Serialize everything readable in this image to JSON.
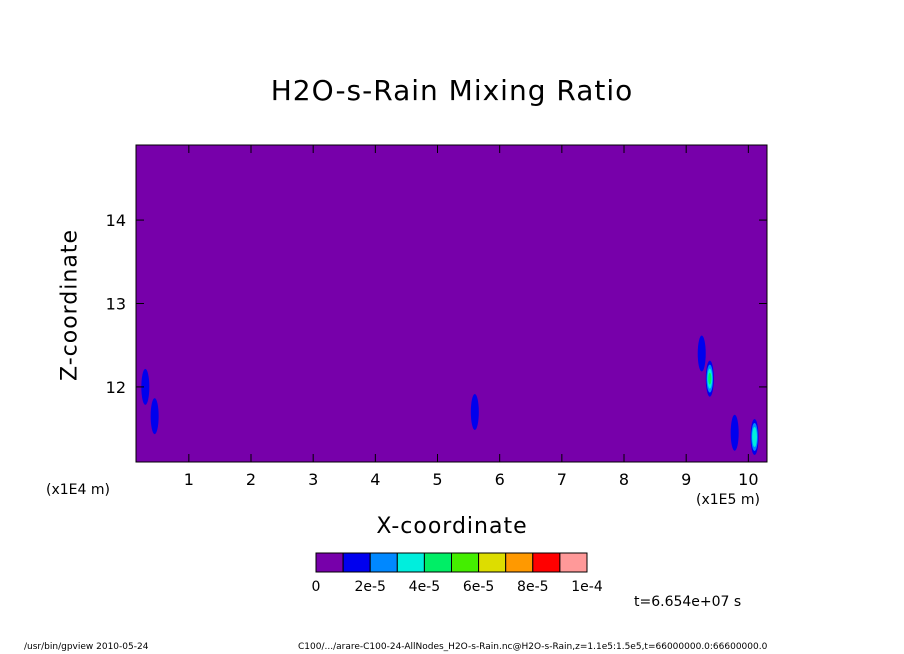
{
  "chart_data": {
    "type": "heatmap",
    "title": "H2O-s-Rain Mixing Ratio",
    "xlabel": "X-coordinate",
    "ylabel": "Z-coordinate",
    "x_unit_label": "(x1E5 m)",
    "z_unit_label": "(x1E4 m)",
    "xlim": [
      0.15,
      10.3
    ],
    "ylim": [
      11.1,
      14.9
    ],
    "x_ticks": [
      1,
      2,
      3,
      4,
      5,
      6,
      7,
      8,
      9,
      10
    ],
    "y_ticks": [
      12,
      13,
      14
    ],
    "background_value": 0,
    "colorbar": {
      "colors": [
        "#7700aa",
        "#0000ee",
        "#0088ff",
        "#00eedd",
        "#00ee66",
        "#44ee00",
        "#dddd00",
        "#ff9900",
        "#ff0000",
        "#ff9999"
      ],
      "labels": [
        "0",
        "2e-5",
        "4e-5",
        "6e-5",
        "8e-5",
        "1e-4"
      ]
    },
    "features": [
      {
        "x": 0.3,
        "z": 12.0,
        "level": 1
      },
      {
        "x": 0.45,
        "z": 11.65,
        "level": 1
      },
      {
        "x": 5.6,
        "z": 11.7,
        "level": 1
      },
      {
        "x": 9.25,
        "z": 12.4,
        "level": 1
      },
      {
        "x": 9.38,
        "z": 12.1,
        "level": 4
      },
      {
        "x": 9.78,
        "z": 11.45,
        "level": 1
      },
      {
        "x": 10.1,
        "z": 11.4,
        "level": 3
      }
    ]
  },
  "time_label": "t=6.654e+07 s",
  "footer_left": "/usr/bin/gpview   2010-05-24",
  "footer_right": "C100/.../arare-C100-24-AllNodes_H2O-s-Rain.nc@H2O-s-Rain,z=1.1e5:1.5e5,t=66000000.0:66600000.0"
}
